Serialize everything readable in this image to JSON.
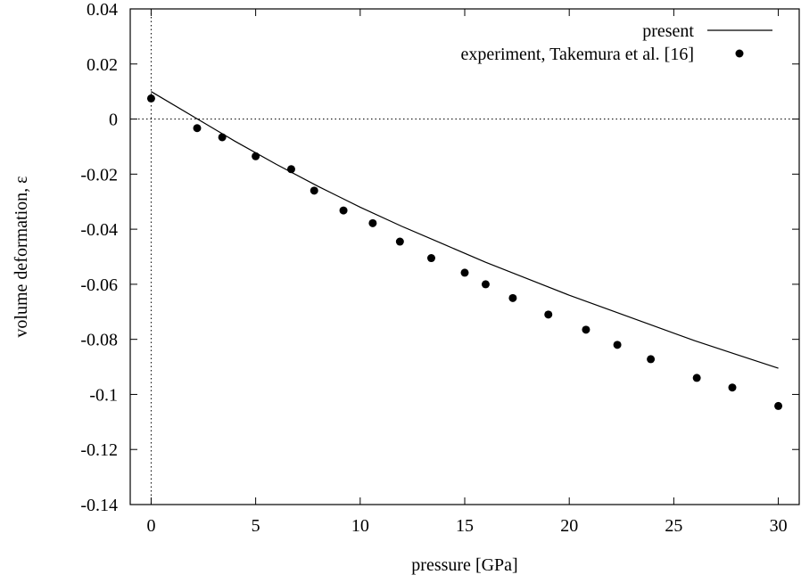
{
  "chart_data": {
    "type": "scatter",
    "xlabel": "pressure [GPa]",
    "ylabel": "volume deformation, ε",
    "xlim": [
      -1,
      31
    ],
    "ylim": [
      -0.14,
      0.04
    ],
    "x_ticks": [
      0,
      5,
      10,
      15,
      20,
      25,
      30
    ],
    "x_tick_labels": [
      "0",
      "5",
      "10",
      "15",
      "20",
      "25",
      "30"
    ],
    "y_ticks": [
      0.04,
      0.02,
      0,
      -0.02,
      -0.04,
      -0.06,
      -0.08,
      -0.1,
      -0.12,
      -0.14
    ],
    "y_tick_labels": [
      "0.04",
      "0.02",
      "0",
      "-0.02",
      "-0.04",
      "-0.06",
      "-0.08",
      "-0.1",
      "-0.12",
      "-0.14"
    ],
    "grid": false,
    "reference_lines": {
      "x": 0,
      "y": 0
    },
    "legend_position": "top-right",
    "series": [
      {
        "name": "present",
        "kind": "line",
        "color": "#000000",
        "x": [
          0,
          2,
          4,
          6,
          8,
          10,
          12,
          14,
          16,
          18,
          20,
          22,
          24,
          26,
          28,
          30
        ],
        "y": [
          0.01,
          0.001,
          -0.008,
          -0.0165,
          -0.0245,
          -0.032,
          -0.039,
          -0.0455,
          -0.052,
          -0.058,
          -0.064,
          -0.0695,
          -0.075,
          -0.0805,
          -0.0855,
          -0.0905
        ]
      },
      {
        "name": "experiment, Takemura et al. [16]",
        "kind": "scatter",
        "color": "#000000",
        "x": [
          0,
          2.2,
          3.4,
          5.0,
          6.7,
          7.8,
          9.2,
          10.6,
          11.9,
          13.4,
          15.0,
          16.0,
          17.3,
          19.0,
          20.8,
          22.3,
          23.9,
          26.1,
          27.8,
          30.0
        ],
        "y": [
          0.0075,
          -0.0033,
          -0.0066,
          -0.0135,
          -0.0182,
          -0.026,
          -0.0332,
          -0.0378,
          -0.0445,
          -0.0505,
          -0.0558,
          -0.06,
          -0.065,
          -0.071,
          -0.0765,
          -0.082,
          -0.0872,
          -0.094,
          -0.0975,
          -0.1042
        ]
      }
    ]
  }
}
